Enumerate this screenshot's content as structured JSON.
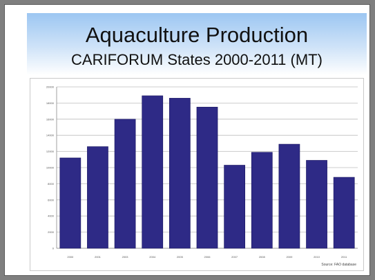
{
  "slide": {
    "title": "Aquaculture Production",
    "subtitle": "CARIFORUM States  2000-2011 (MT)",
    "source": "Source: FAO database"
  },
  "colors": {
    "bar": "#2e2a86",
    "bar_stroke": "#1a1760",
    "grid": "#bdbdbd",
    "title_band_top": "#9cc6f2"
  },
  "chart_data": {
    "type": "bar",
    "categories": [
      "2000",
      "2001",
      "2003",
      "2004",
      "2005",
      "2006",
      "2007",
      "2008",
      "2009",
      "2010",
      "2011"
    ],
    "values": [
      11200,
      12600,
      16000,
      18900,
      18600,
      17500,
      10300,
      11900,
      12900,
      10900,
      8800
    ],
    "ylim": [
      0,
      20000
    ],
    "yticks": [
      "0",
      "2000",
      "4000",
      "6000",
      "8000",
      "10000",
      "12000",
      "14000",
      "16000",
      "18000",
      "20000"
    ],
    "ytick_values": [
      0,
      2000,
      4000,
      6000,
      8000,
      10000,
      12000,
      14000,
      16000,
      18000,
      20000
    ],
    "grid": true,
    "xlabel": "",
    "ylabel": ""
  }
}
